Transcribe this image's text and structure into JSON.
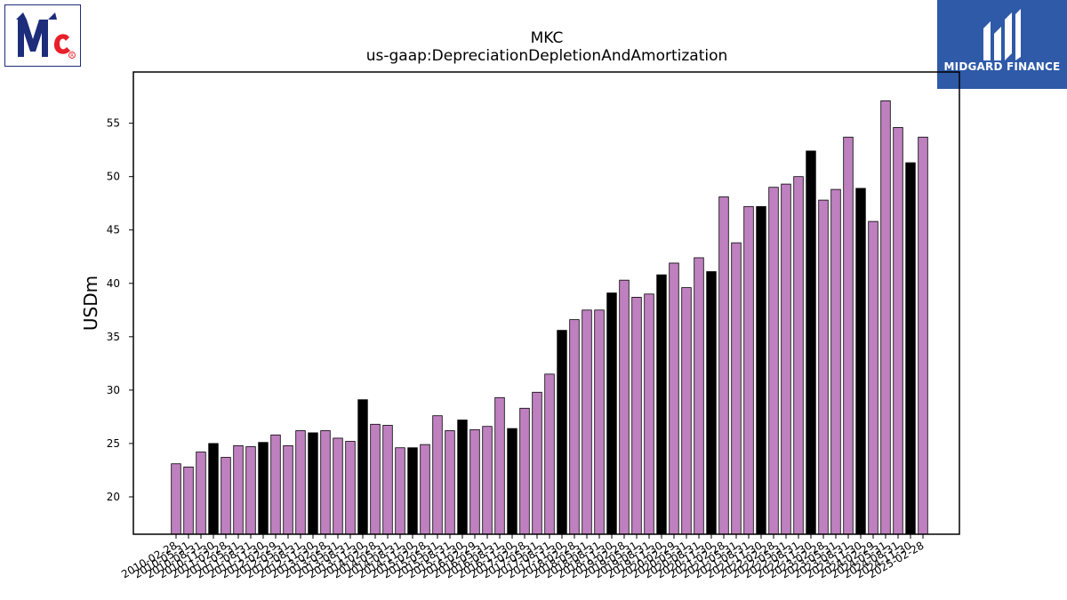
{
  "branding": {
    "left_logo": "McCormick logo",
    "right_logo_text": "MIDGARD FINANCE"
  },
  "colors": {
    "bar_regular": "#bf80c0",
    "bar_fiscal_year_end": "#000000",
    "bar_edge": "#000000",
    "brand_blue": "#2e5aa8",
    "mccormick_blue": "#1d2d7c",
    "mccormick_red": "#e8202a"
  },
  "chart_data": {
    "type": "bar",
    "title": "MKC",
    "subtitle": "us-gaap:DepreciationDepletionAndAmortization",
    "xlabel": "",
    "ylabel": "USDm",
    "ylim": [
      16.5,
      59.8
    ],
    "yticks": [
      20,
      25,
      30,
      35,
      40,
      45,
      50,
      55
    ],
    "grid": false,
    "categories": [
      "2010-02-28",
      "2010-05-31",
      "2010-08-31",
      "2010-11-30",
      "2011-02-28",
      "2011-05-31",
      "2011-08-31",
      "2011-11-30",
      "2012-02-29",
      "2012-05-31",
      "2012-08-31",
      "2012-11-30",
      "2013-02-28",
      "2013-05-31",
      "2013-08-31",
      "2013-11-30",
      "2014-02-28",
      "2014-05-31",
      "2014-08-31",
      "2014-11-30",
      "2015-02-28",
      "2015-05-31",
      "2015-08-31",
      "2015-11-30",
      "2016-02-29",
      "2016-05-31",
      "2016-08-31",
      "2016-11-30",
      "2017-02-28",
      "2017-05-31",
      "2017-08-31",
      "2017-11-30",
      "2018-02-28",
      "2018-05-31",
      "2018-08-31",
      "2018-11-30",
      "2019-02-28",
      "2019-05-31",
      "2019-08-31",
      "2019-11-30",
      "2020-02-29",
      "2020-05-31",
      "2020-08-31",
      "2020-11-30",
      "2021-02-28",
      "2021-05-31",
      "2021-08-31",
      "2021-11-30",
      "2022-02-28",
      "2022-05-31",
      "2022-08-31",
      "2022-11-30",
      "2023-02-28",
      "2023-05-31",
      "2023-08-31",
      "2023-11-30",
      "2024-02-29",
      "2024-05-31",
      "2024-08-31",
      "2024-11-30",
      "2025-02-28"
    ],
    "values": [
      23.1,
      22.8,
      24.2,
      25.0,
      23.7,
      24.8,
      24.7,
      25.1,
      25.8,
      24.8,
      26.2,
      26.0,
      26.2,
      25.5,
      25.2,
      29.1,
      26.8,
      26.7,
      24.6,
      24.6,
      24.9,
      27.6,
      26.2,
      27.2,
      26.3,
      26.6,
      29.3,
      26.4,
      28.3,
      29.8,
      31.5,
      35.6,
      36.6,
      37.5,
      37.5,
      39.1,
      40.3,
      38.7,
      39.0,
      40.8,
      41.9,
      39.6,
      42.4,
      41.1,
      48.1,
      43.8,
      47.2,
      47.2,
      49.0,
      49.3,
      50.0,
      52.4,
      47.8,
      48.8,
      53.7,
      48.9,
      45.8,
      57.1,
      54.6,
      51.3,
      53.7
    ],
    "highlight": [
      false,
      false,
      false,
      true,
      false,
      false,
      false,
      true,
      false,
      false,
      false,
      true,
      false,
      false,
      false,
      true,
      false,
      false,
      false,
      true,
      false,
      false,
      false,
      true,
      false,
      false,
      false,
      true,
      false,
      false,
      false,
      true,
      false,
      false,
      false,
      true,
      false,
      false,
      false,
      true,
      false,
      false,
      false,
      true,
      false,
      false,
      false,
      true,
      false,
      false,
      false,
      true,
      false,
      false,
      false,
      true,
      false,
      false,
      false,
      true,
      false
    ]
  }
}
